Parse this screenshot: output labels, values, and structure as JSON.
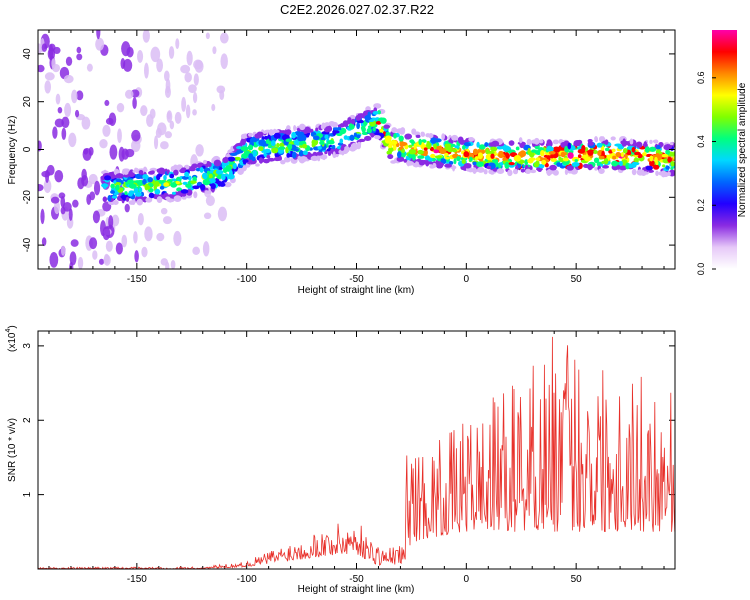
{
  "title": "C2E2.2026.027.02.37.R22",
  "chart_data": [
    {
      "type": "heatmap",
      "xlabel": "Height of straight line (km)",
      "ylabel": "Frequency (Hz)",
      "xlim": [
        -195,
        95
      ],
      "ylim": [
        -50,
        50
      ],
      "xticks": [
        -150,
        -100,
        -50,
        0,
        50
      ],
      "yticks": [
        -40,
        -20,
        0,
        20,
        40
      ],
      "ridge": {
        "x": [
          -160,
          -130,
          -110,
          -100,
          -80,
          -60,
          -50,
          -40,
          -35,
          -20,
          0,
          20,
          40,
          60,
          80,
          95
        ],
        "frequency": [
          -16,
          -14,
          -10,
          0,
          2,
          4,
          8,
          12,
          2,
          0,
          -2,
          -3,
          -3,
          -2,
          -3,
          -4
        ]
      },
      "colorbar": {
        "label": "Normalized spectral amplitude",
        "range": [
          0,
          0.75
        ],
        "ticks": [
          "0.0",
          "0.2",
          "0.4",
          "0.6"
        ],
        "colors": [
          "#ffffff",
          "#e6c8f8",
          "#8a2be2",
          "#2200ff",
          "#0066ff",
          "#00d8ff",
          "#00ff80",
          "#80ff00",
          "#ffff00",
          "#ff8800",
          "#ff0000",
          "#ff00aa"
        ]
      }
    },
    {
      "type": "line",
      "xlabel": "Height of straight line (km)",
      "ylabel": "SNR (10 * v/v)",
      "yscale_label": "(x10",
      "yscale_exp": "4",
      "xlim": [
        -195,
        95
      ],
      "ylim": [
        0,
        3.2
      ],
      "xticks": [
        -150,
        -100,
        -50,
        0,
        50
      ],
      "yticks": [
        1,
        2,
        3
      ],
      "color": "#e8302a",
      "envelope": {
        "x": [
          -195,
          -120,
          -100,
          -90,
          -70,
          -60,
          -50,
          -45,
          -40,
          -35,
          -28,
          -27,
          -20,
          0,
          20,
          40,
          60,
          80,
          95
        ],
        "peak": [
          0.02,
          0.03,
          0.1,
          0.25,
          0.5,
          0.6,
          0.7,
          0.45,
          0.35,
          0.3,
          0.35,
          1.8,
          1.6,
          2.0,
          2.5,
          3.2,
          2.9,
          2.6,
          2.5
        ],
        "floor": [
          0.0,
          0.0,
          0.03,
          0.07,
          0.15,
          0.18,
          0.2,
          0.12,
          0.05,
          0.05,
          0.08,
          0.3,
          0.4,
          0.5,
          0.5,
          0.5,
          0.5,
          0.5,
          0.5
        ]
      }
    }
  ]
}
